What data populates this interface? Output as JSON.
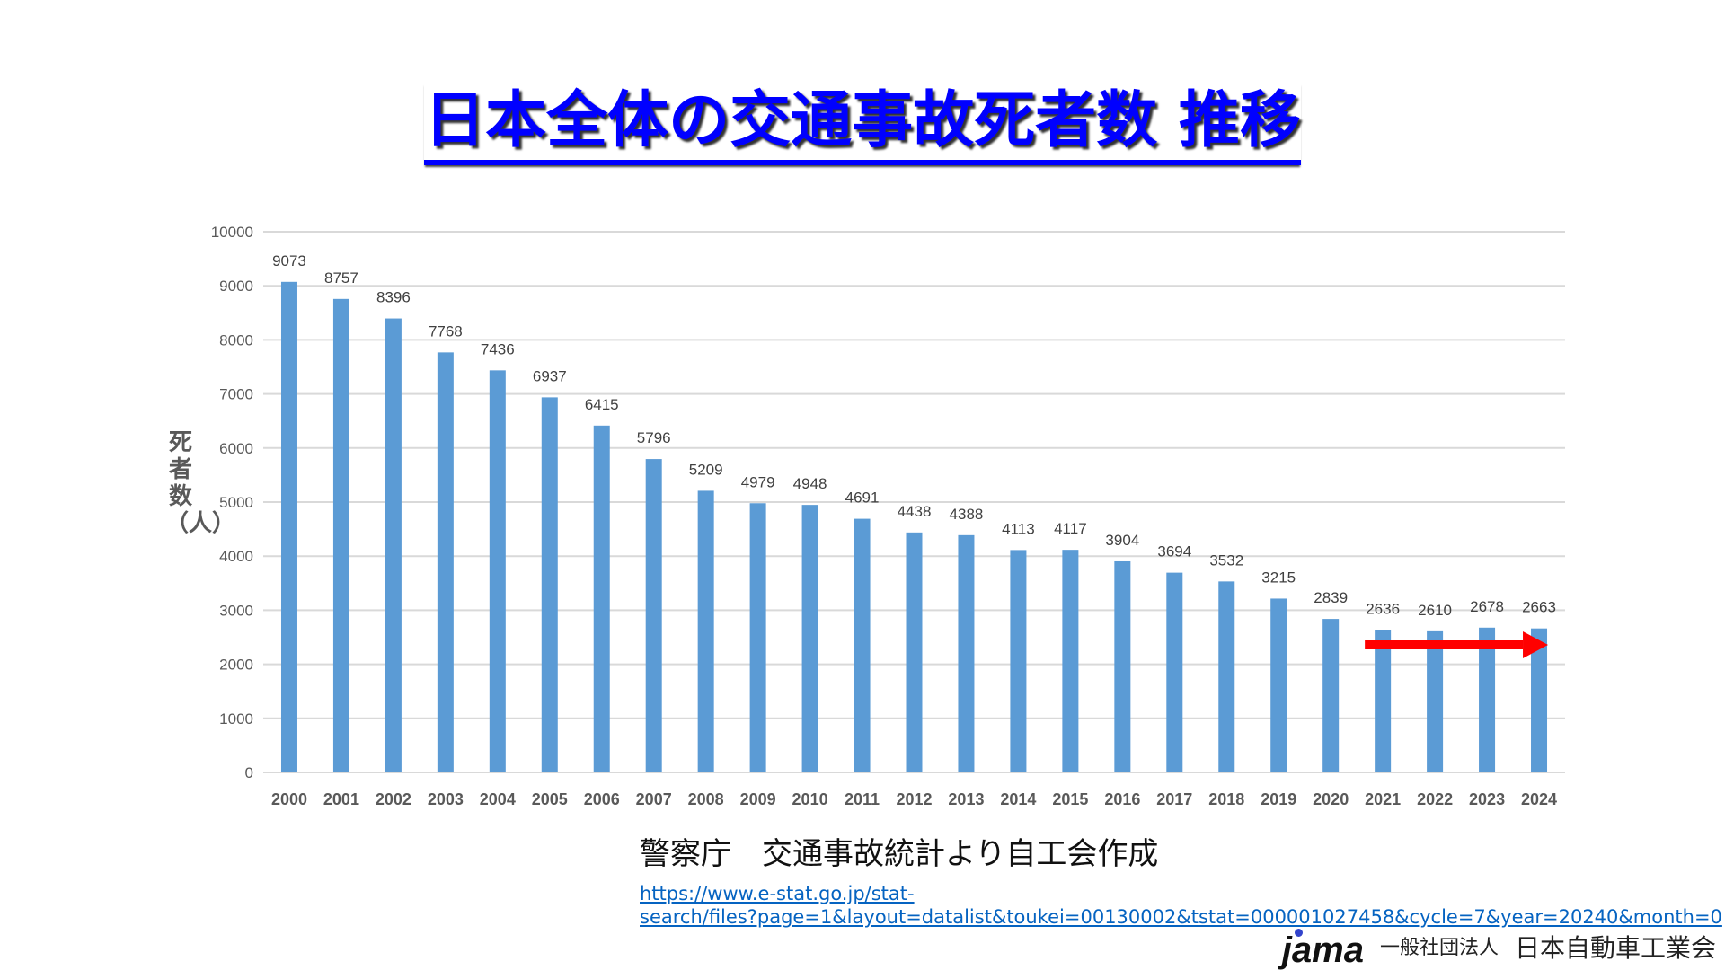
{
  "title": "日本全体の交通事故死者数 推移",
  "chart_data": {
    "type": "bar",
    "title": "日本全体の交通事故死者数 推移",
    "xlabel": "",
    "ylabel": "死者数（人）",
    "categories": [
      "2000",
      "2001",
      "2002",
      "2003",
      "2004",
      "2005",
      "2006",
      "2007",
      "2008",
      "2009",
      "2010",
      "2011",
      "2012",
      "2013",
      "2014",
      "2015",
      "2016",
      "2017",
      "2018",
      "2019",
      "2020",
      "2021",
      "2022",
      "2023",
      "2024"
    ],
    "values": [
      9073,
      8757,
      8396,
      7768,
      7436,
      6937,
      6415,
      5796,
      5209,
      4979,
      4948,
      4691,
      4438,
      4388,
      4113,
      4117,
      3904,
      3694,
      3532,
      3215,
      2839,
      2636,
      2610,
      2678,
      2663
    ],
    "ylim": [
      0,
      10000
    ],
    "yticks": [
      "0",
      "1000",
      "2000",
      "3000",
      "4000",
      "5000",
      "6000",
      "7000",
      "8000",
      "9000",
      "10000"
    ],
    "grid": true,
    "bar_color": "#5b9bd5",
    "annotation": {
      "type": "arrow",
      "from": "2021",
      "to": "2024",
      "color": "#ff0000"
    }
  },
  "source": "警察庁　交通事故統計より自工会作成",
  "url_line1": "https://www.e-stat.go.jp/stat-",
  "url_line2": "search/files?page=1&layout=datalist&toukei=00130002&tstat=000001027458&cycle=7&year=20240&month=0",
  "logo": "jama",
  "org_prefix": "一般社団法人",
  "org_name": "日本自動車工業会"
}
